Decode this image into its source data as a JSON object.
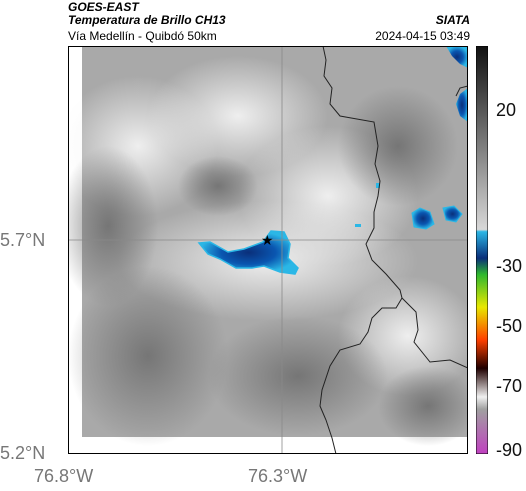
{
  "header": {
    "satellite": "GOES-EAST",
    "product": "Temperatura de Brillo CH13",
    "route": "Vía Medellín - Quibdó 50km",
    "agency": "SIATA",
    "datetime": "2024-04-15 03:49"
  },
  "map": {
    "lat_ticks": [
      "5.7°N",
      "5.2°N"
    ],
    "lon_ticks": [
      "76.8°W",
      "76.3°W"
    ],
    "marker": "star",
    "colors": {
      "frame": "#000000",
      "gridline": "#8a8a8a",
      "boundary": "#222222",
      "cold_cloud_core": "#0a2f7a",
      "cold_cloud_edge": "#2bb7e6"
    }
  },
  "colorbar": {
    "labels": [
      "20",
      "-30",
      "-50",
      "-70",
      "-90"
    ],
    "colors": [
      "#111111",
      "#6e6e6e",
      "#d9d9d9",
      "#2bb7e6",
      "#0a2f7a",
      "#2eb82e",
      "#e8e800",
      "#ff4000",
      "#200000",
      "#a0a0a0",
      "#c040c0"
    ]
  }
}
